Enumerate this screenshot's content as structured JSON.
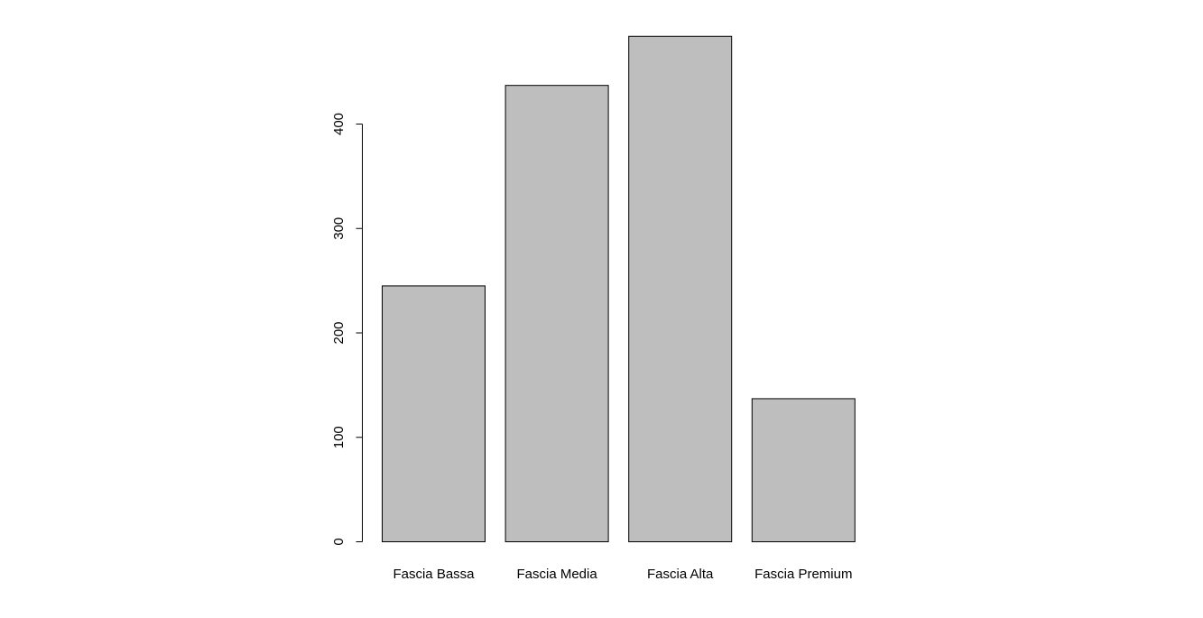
{
  "chart_data": {
    "type": "bar",
    "title": "",
    "xlabel": "",
    "ylabel": "",
    "categories": [
      "Fascia Bassa",
      "Fascia Media",
      "Fascia Alta",
      "Fascia Premium"
    ],
    "values": [
      245,
      437,
      484,
      137
    ],
    "ylim": [
      0,
      484
    ],
    "y_ticks": [
      0,
      100,
      200,
      300,
      400
    ],
    "y_tick_labels": [
      "0",
      "100",
      "200",
      "300",
      "400"
    ],
    "bar_color": "#bebebe",
    "bar_border_color": "#000000",
    "grid": false,
    "legend": "none"
  }
}
